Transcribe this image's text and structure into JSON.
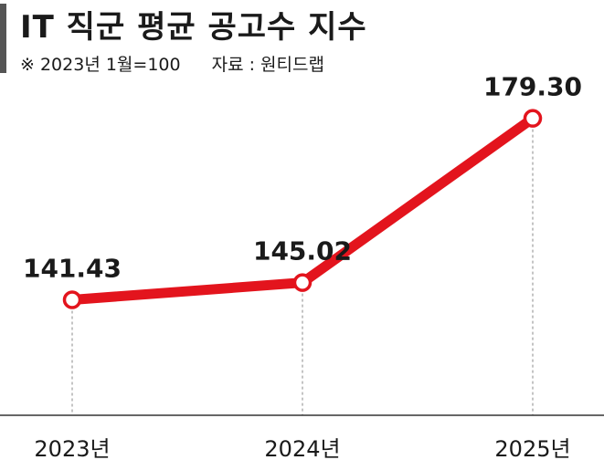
{
  "chart_data": {
    "type": "line",
    "title": "IT 직군 평균 공고수 지수",
    "note": "※ 2023년 1월=100",
    "source": "자료 : 원티드랩",
    "categories": [
      "2023년",
      "2024년",
      "2025년"
    ],
    "series": [
      {
        "values": [
          141.43,
          145.02,
          179.3
        ],
        "labels": [
          "141.43",
          "145.02",
          "179.30"
        ]
      }
    ],
    "xlabel": "",
    "ylabel": "",
    "grid": false,
    "colors": {
      "line": "#e3141d",
      "marker_fill": "#ffffff",
      "axis": "#333333",
      "guide": "#888888"
    }
  }
}
